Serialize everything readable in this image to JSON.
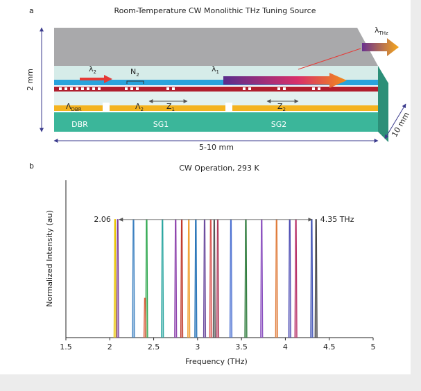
{
  "panel_a": {
    "label": "a",
    "title": "Room-Temperature CW Monolithic THz Tuning Source",
    "height_label": "2 mm",
    "length_label": "5-10 mm",
    "width_label": "10 mm",
    "section_labels": [
      "DBR",
      "SG1",
      "SG2"
    ],
    "symbols": {
      "lambda_thz": {
        "main": "λ",
        "sub": "THz"
      },
      "lambda_2": {
        "main": "λ",
        "sub": "2"
      },
      "lambda_1": {
        "main": "λ",
        "sub": "1"
      },
      "n_2": {
        "main": "N",
        "sub": "2"
      },
      "period_dbr": {
        "main": "Λ",
        "sub": "DBR"
      },
      "period_2": {
        "main": "Λ",
        "sub": "2"
      },
      "z_1": {
        "main": "Z",
        "sub": "1"
      },
      "z_2": {
        "main": "Z",
        "sub": "2"
      }
    }
  },
  "chart_data": {
    "type": "spectrum",
    "panel_label": "b",
    "title": "CW Operation, 293 K",
    "x_label": "Frequency (THz)",
    "y_label": "Normalized Intensity (au)",
    "xlim": [
      1.5,
      5
    ],
    "xticks": [
      1.5,
      2,
      2.5,
      3,
      3.5,
      4,
      4.5,
      5
    ],
    "ylim": [
      0,
      1
    ],
    "annotations": {
      "start": "2.06",
      "end": "4.35 THz"
    },
    "x": [
      2.06,
      2.09,
      2.27,
      2.42,
      2.6,
      2.75,
      2.82,
      2.9,
      2.98,
      3.08,
      3.15,
      3.19,
      3.23,
      3.38,
      3.55,
      3.73,
      3.9,
      4.05,
      4.12,
      4.3,
      4.35,
      2.4
    ],
    "values": [
      0.75,
      0.75,
      0.75,
      0.75,
      0.75,
      0.75,
      0.75,
      0.75,
      0.75,
      0.75,
      0.75,
      0.75,
      0.75,
      0.75,
      0.75,
      0.75,
      0.75,
      0.75,
      0.75,
      0.75,
      0.75,
      0.25
    ],
    "colors": [
      "#e8c400",
      "#7a3e9d",
      "#3a7fc0",
      "#2fa84f",
      "#2aa6a0",
      "#8e44ad",
      "#c0392b",
      "#f0a030",
      "#1f6fb5",
      "#6d4c9f",
      "#d9534f",
      "#555555",
      "#b03a5b",
      "#4a6fd1",
      "#2c7a3a",
      "#8a4fbf",
      "#e07b39",
      "#4b4bb3",
      "#b8336a",
      "#3f51b5",
      "#444444",
      "#e06040"
    ]
  }
}
